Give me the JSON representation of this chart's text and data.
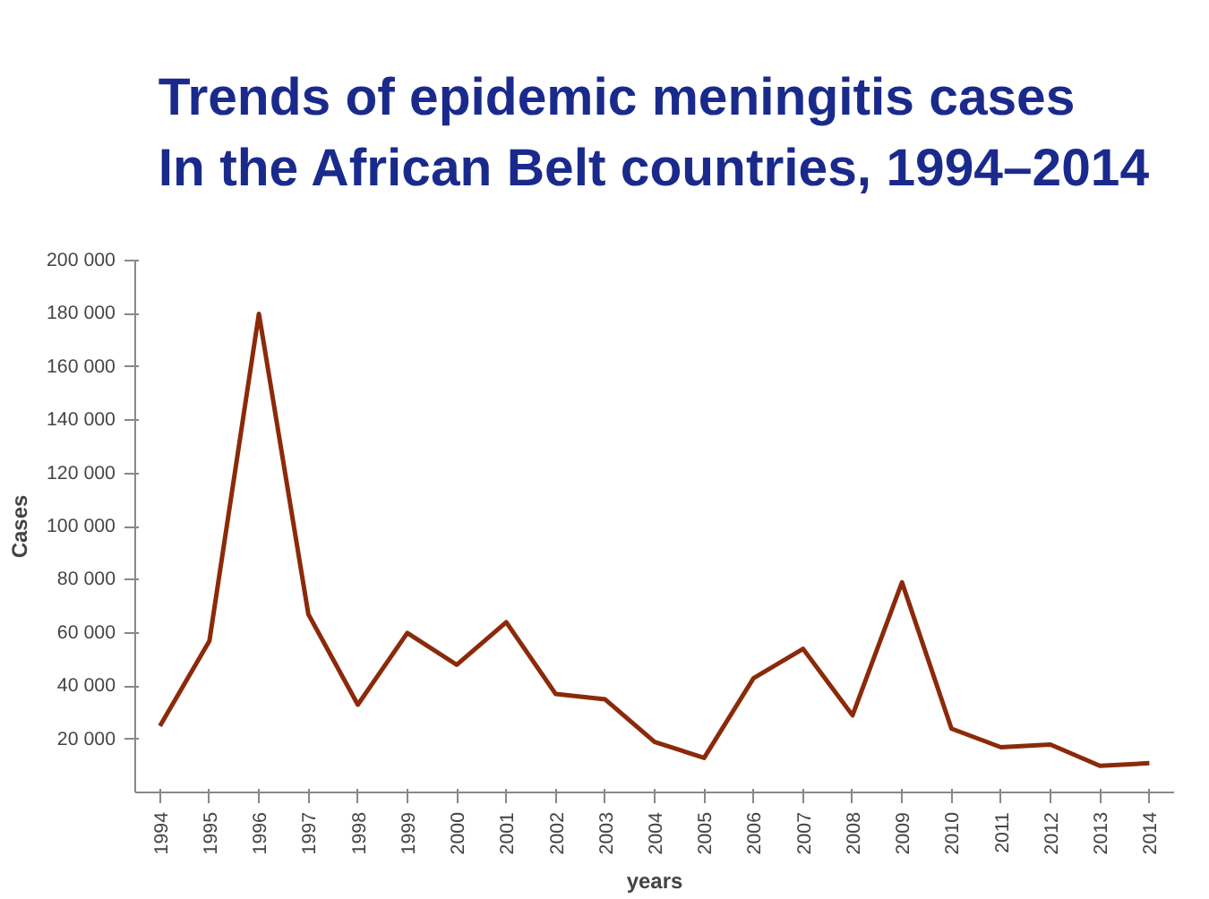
{
  "chart_data": {
    "type": "line",
    "title": "Trends of epidemic meningitis cases\nIn the African Belt countries, 1994–2014",
    "xlabel": "years",
    "ylabel": "Cases",
    "categories": [
      "1994",
      "1995",
      "1996",
      "1997",
      "1998",
      "1999",
      "2000",
      "2001",
      "2002",
      "2003",
      "2004",
      "2005",
      "2006",
      "2007",
      "2008",
      "2009",
      "2010",
      "2011",
      "2012",
      "2013",
      "2014"
    ],
    "series": [
      {
        "color": "#8b2a0a",
        "values": [
          25000,
          57000,
          180000,
          67000,
          33000,
          60000,
          48000,
          64000,
          37000,
          35000,
          19000,
          13000,
          43000,
          54000,
          29000,
          79000,
          24000,
          17000,
          18000,
          10000,
          11000
        ]
      }
    ],
    "ylim": [
      0,
      200000
    ],
    "yticks": [
      {
        "value": 20000,
        "label": "20 000"
      },
      {
        "value": 40000,
        "label": "40 000"
      },
      {
        "value": 60000,
        "label": "60 000"
      },
      {
        "value": 80000,
        "label": "80 000"
      },
      {
        "value": 100000,
        "label": "100 000"
      },
      {
        "value": 120000,
        "label": "120 000"
      },
      {
        "value": 140000,
        "label": "140 000"
      },
      {
        "value": 160000,
        "label": "160 000"
      },
      {
        "value": 180000,
        "label": "180 000"
      },
      {
        "value": 200000,
        "label": "200 000"
      }
    ],
    "grid": false
  }
}
